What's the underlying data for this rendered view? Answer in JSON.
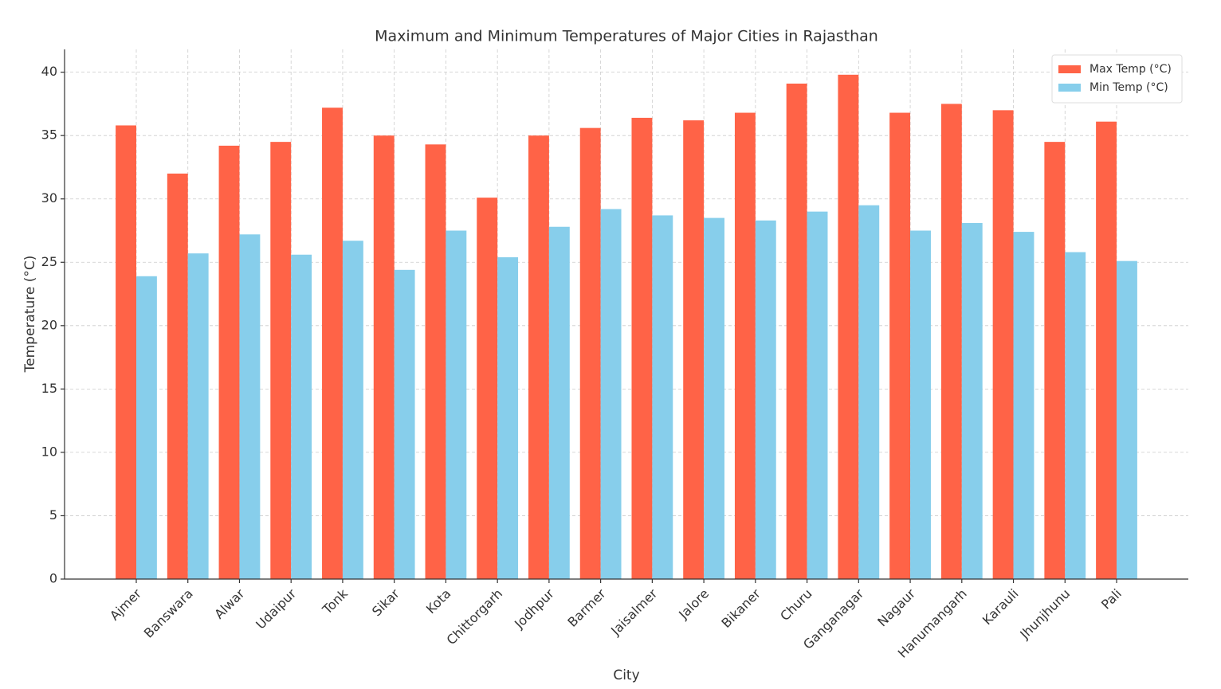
{
  "chart_data": {
    "type": "bar",
    "title": "Maximum and Minimum Temperatures of Major Cities in Rajasthan",
    "x_label": "City",
    "y_label": "Temperature (°C)",
    "categories": [
      "Ajmer",
      "Banswara",
      "Alwar",
      "Udaipur",
      "Tonk",
      "Sikar",
      "Kota",
      "Chittorgarh",
      "Jodhpur",
      "Barmer",
      "Jaisalmer",
      "Jalore",
      "Bikaner",
      "Churu",
      "Ganganagar",
      "Nagaur",
      "Hanumangarh",
      "Karauli",
      "Jhunjhunu",
      "Pali"
    ],
    "series": [
      {
        "name": "Max Temp (°C)",
        "color": "#ff6347",
        "values": [
          35.8,
          32.0,
          34.2,
          34.5,
          37.2,
          35.0,
          34.3,
          30.1,
          35.0,
          35.6,
          36.4,
          36.2,
          36.8,
          39.1,
          39.8,
          36.8,
          37.5,
          37.0,
          34.5,
          36.1
        ]
      },
      {
        "name": "Min Temp (°C)",
        "color": "#87ceeb",
        "values": [
          23.9,
          25.7,
          27.2,
          25.6,
          26.7,
          24.4,
          27.5,
          25.4,
          27.8,
          29.2,
          28.7,
          28.5,
          28.3,
          29.0,
          29.5,
          27.5,
          28.1,
          27.4,
          25.8,
          25.1
        ]
      }
    ],
    "ylim": [
      0,
      41.8
    ],
    "yticks": [
      0,
      5,
      10,
      15,
      20,
      25,
      30,
      35,
      40
    ],
    "grid": true,
    "legend": "upper right"
  }
}
